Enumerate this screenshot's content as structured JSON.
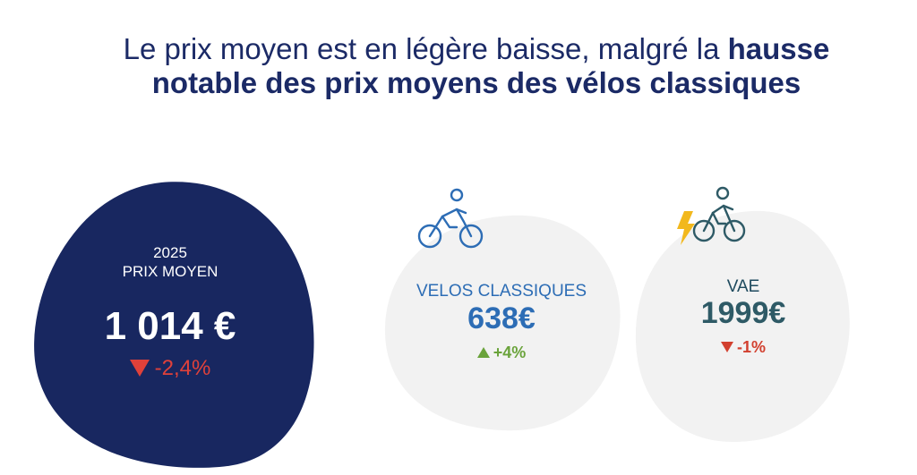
{
  "title": {
    "part1": "Le prix moyen est en légère baisse, malgré la ",
    "bold1": "hausse",
    "bold2": "notable des prix moyens des vélos classiques"
  },
  "summary": {
    "year": "2025",
    "label": "PRIX MOYEN",
    "value": "1 014 €",
    "delta": "-2,4%"
  },
  "cards": [
    {
      "label": "VELOS CLASSIQUES",
      "value": "638€",
      "delta": "+4%"
    },
    {
      "label": "VAE",
      "value": "1999€",
      "delta": "-1%"
    }
  ],
  "icons": {
    "classic": "cyclist-icon",
    "electric": "electric-bike-icon"
  },
  "colors": {
    "navy": "#1b2a66",
    "blue": "#2d6db5",
    "teal": "#2e5a66",
    "green": "#6aa33b",
    "red": "#d2402f",
    "gray_blob": "#f2f2f2",
    "bolt": "#f2b81d"
  }
}
